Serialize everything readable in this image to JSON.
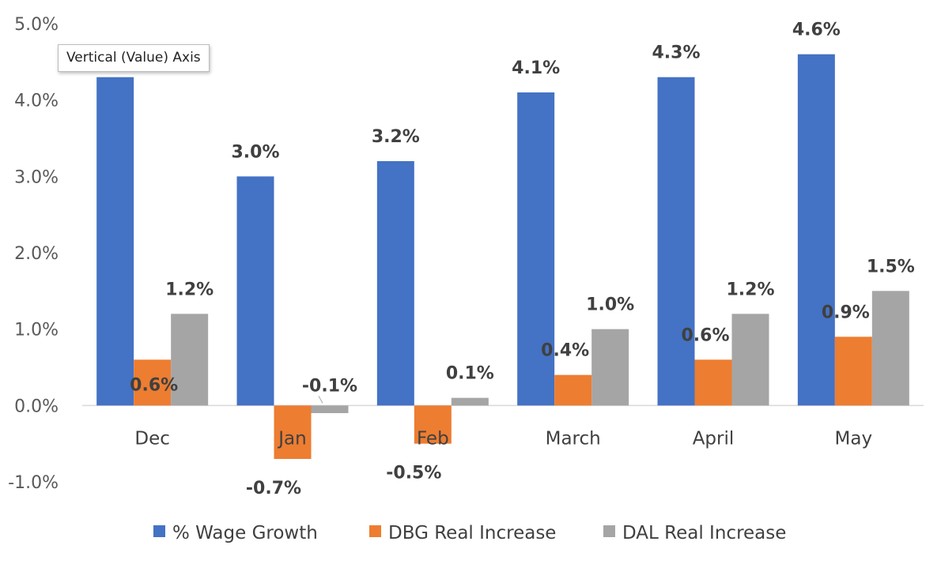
{
  "chart_data": {
    "type": "bar",
    "categories": [
      "Dec",
      "Jan",
      "Feb",
      "March",
      "April",
      "May"
    ],
    "series": [
      {
        "name": "% Wage Growth",
        "color": "#4472C4",
        "values": [
          4.3,
          3.0,
          3.2,
          4.1,
          4.3,
          4.6
        ],
        "labels": [
          "",
          "3.0%",
          "3.2%",
          "4.1%",
          "4.3%",
          "4.6%"
        ]
      },
      {
        "name": "DBG Real Increase",
        "color": "#ED7D31",
        "values": [
          0.6,
          -0.7,
          -0.5,
          0.4,
          0.6,
          0.9
        ],
        "labels": [
          "0.6%",
          "-0.7%",
          "-0.5%",
          "0.4%",
          "0.6%",
          "0.9%"
        ]
      },
      {
        "name": "DAL Real Increase",
        "color": "#A5A5A5",
        "values": [
          1.2,
          -0.1,
          0.1,
          1.0,
          1.2,
          1.5
        ],
        "labels": [
          "1.2%",
          "-0.1%",
          "0.1%",
          "1.0%",
          "1.2%",
          "1.5%"
        ]
      }
    ],
    "yticks": [
      "-1.0%",
      "0.0%",
      "1.0%",
      "2.0%",
      "3.0%",
      "4.0%",
      "5.0%"
    ],
    "ylim": [
      -1.0,
      5.0
    ],
    "grid": false,
    "legend_position": "bottom"
  },
  "tooltip": {
    "text": "Vertical (Value) Axis"
  }
}
